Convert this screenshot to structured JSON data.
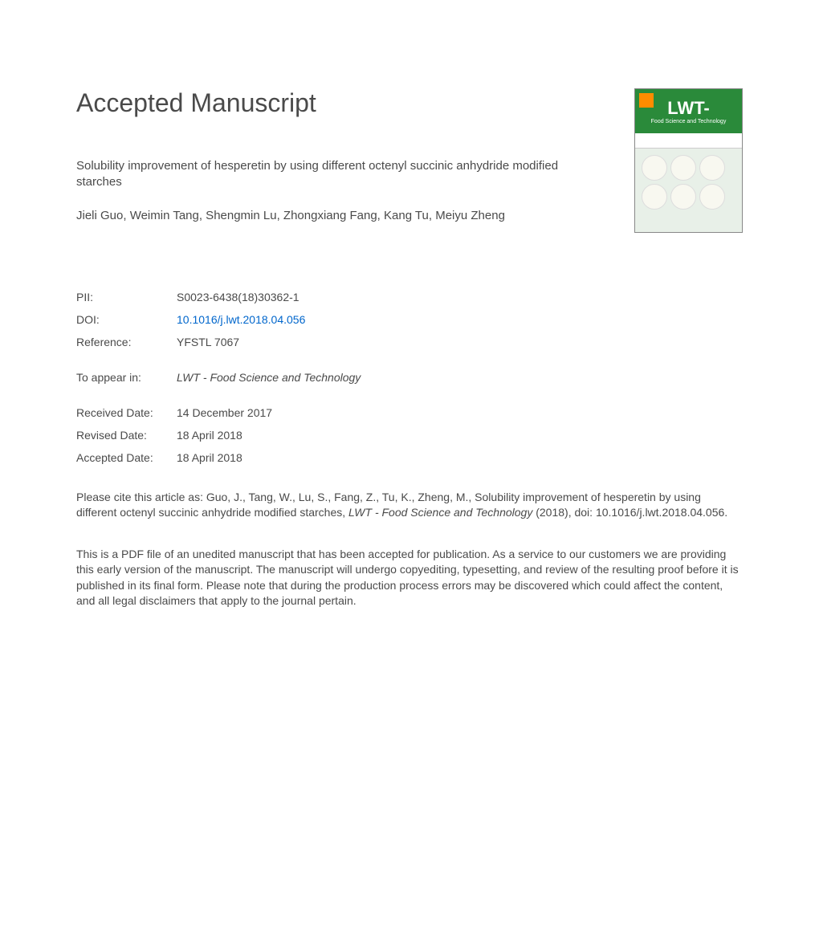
{
  "heading": "Accepted Manuscript",
  "title": "Solubility improvement of hesperetin by using different octenyl succinic anhydride modified starches",
  "authors": "Jieli Guo, Weimin Tang, Shengmin Lu, Zhongxiang Fang, Kang Tu, Meiyu Zheng",
  "meta": {
    "pii_label": "PII:",
    "pii_value": "S0023-6438(18)30362-1",
    "doi_label": "DOI:",
    "doi_value": "10.1016/j.lwt.2018.04.056",
    "reference_label": "Reference:",
    "reference_value": "YFSTL 7067",
    "appear_label": "To appear in:",
    "appear_value": "LWT - Food Science and Technology",
    "received_label": "Received Date:",
    "received_value": "14 December 2017",
    "revised_label": "Revised Date:",
    "revised_value": "18 April 2018",
    "accepted_label": "Accepted Date:",
    "accepted_value": "18 April 2018"
  },
  "citation_prefix": "Please cite this article as: Guo, J., Tang, W., Lu, S., Fang, Z., Tu, K., Zheng, M., Solubility improvement of hesperetin by using different octenyl succinic anhydride modified starches, ",
  "citation_journal": "LWT - Food Science and Technology",
  "citation_suffix": " (2018), doi: 10.1016/j.lwt.2018.04.056.",
  "disclaimer": "This is a PDF file of an unedited manuscript that has been accepted for publication. As a service to our customers we are providing this early version of the manuscript. The manuscript will undergo copyediting, typesetting, and review of the resulting proof before it is published in its final form. Please note that during the production process errors may be discovered which could affect the content, and all legal disclaimers that apply to the journal pertain.",
  "cover": {
    "lwt": "LWT-",
    "subtitle": "Food Science and Technology",
    "top_bg": "#2a8a3a",
    "logo_bg": "#ff8c00"
  },
  "colors": {
    "text": "#4a4a4a",
    "link": "#0066cc",
    "background": "#ffffff"
  }
}
